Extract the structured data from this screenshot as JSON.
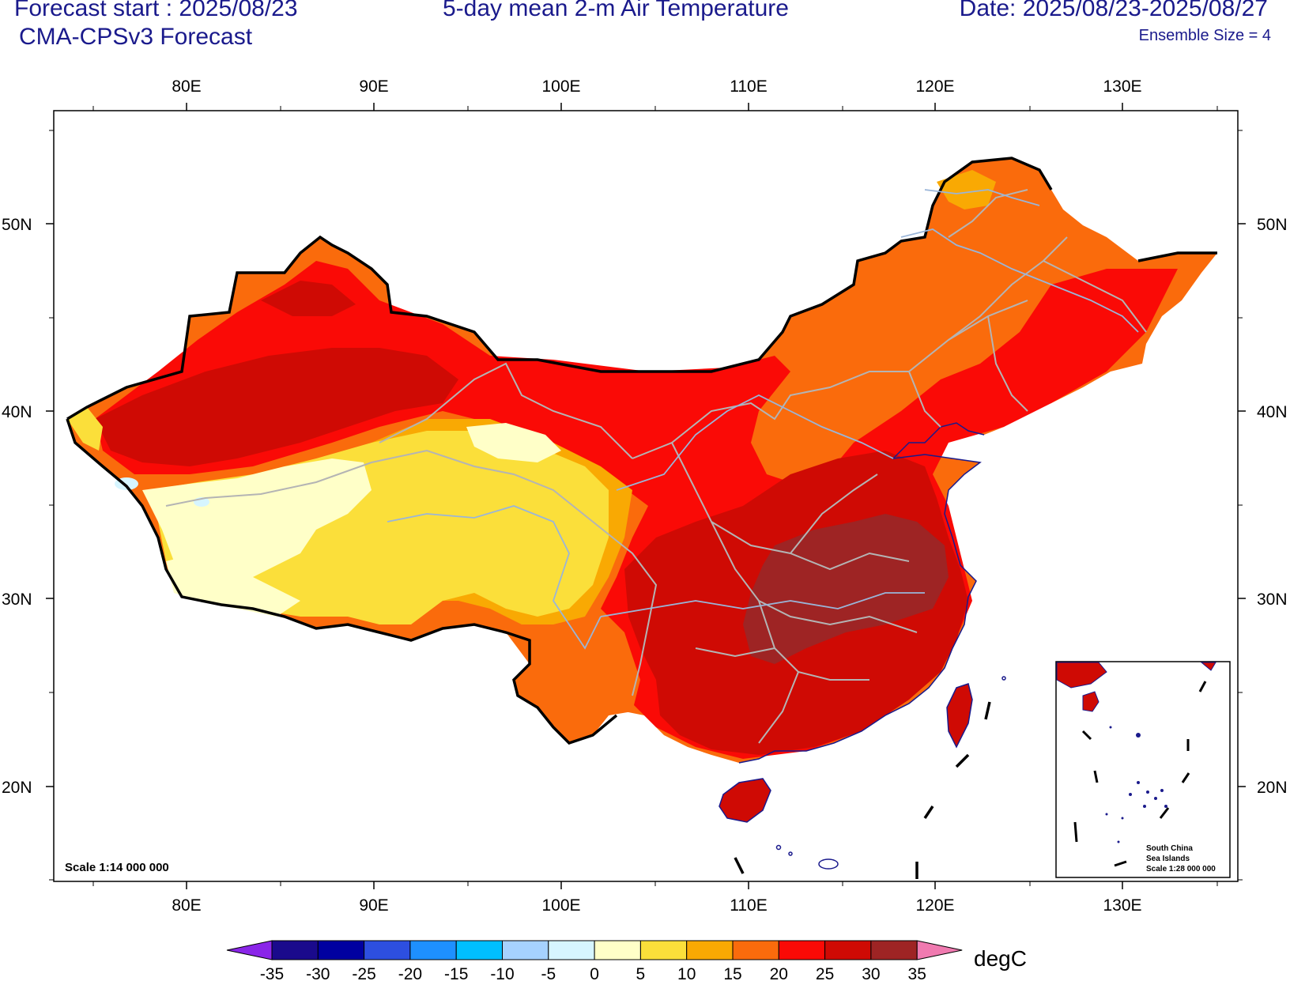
{
  "header": {
    "forecast_start": "Forecast start : 2025/08/23",
    "model": "CMA-CPSv3 Forecast",
    "title": "5-day mean 2-m Air Temperature",
    "date_range": "Date: 2025/08/23-2025/08/27",
    "ensemble": "Ensemble Size = 4"
  },
  "map": {
    "lon_ticks": [
      "80E",
      "90E",
      "100E",
      "110E",
      "120E",
      "130E"
    ],
    "lat_ticks": [
      "50N",
      "40N",
      "30N",
      "20N"
    ],
    "scale_label": "Scale 1:14 000 000",
    "inset": {
      "line1": "South China",
      "line2": "Sea Islands",
      "line3": "Scale 1:28 000 000"
    }
  },
  "colorbar": {
    "unit": "degC",
    "labels": [
      "-35",
      "-30",
      "-25",
      "-20",
      "-15",
      "-10",
      "-5",
      "0",
      "5",
      "10",
      "15",
      "20",
      "25",
      "30",
      "35"
    ],
    "colors": [
      "#1a0a8c",
      "#0000a0",
      "#2d4fe0",
      "#1e90ff",
      "#00bfff",
      "#a6d2ff",
      "#d6f5ff",
      "#ffffc8",
      "#fbdf3a",
      "#f9a903",
      "#fa6b0c",
      "#fa0a06",
      "#cf0a04",
      "#9e2424"
    ],
    "low_color": "#8a25e8",
    "high_color": "#f07ab0"
  }
}
